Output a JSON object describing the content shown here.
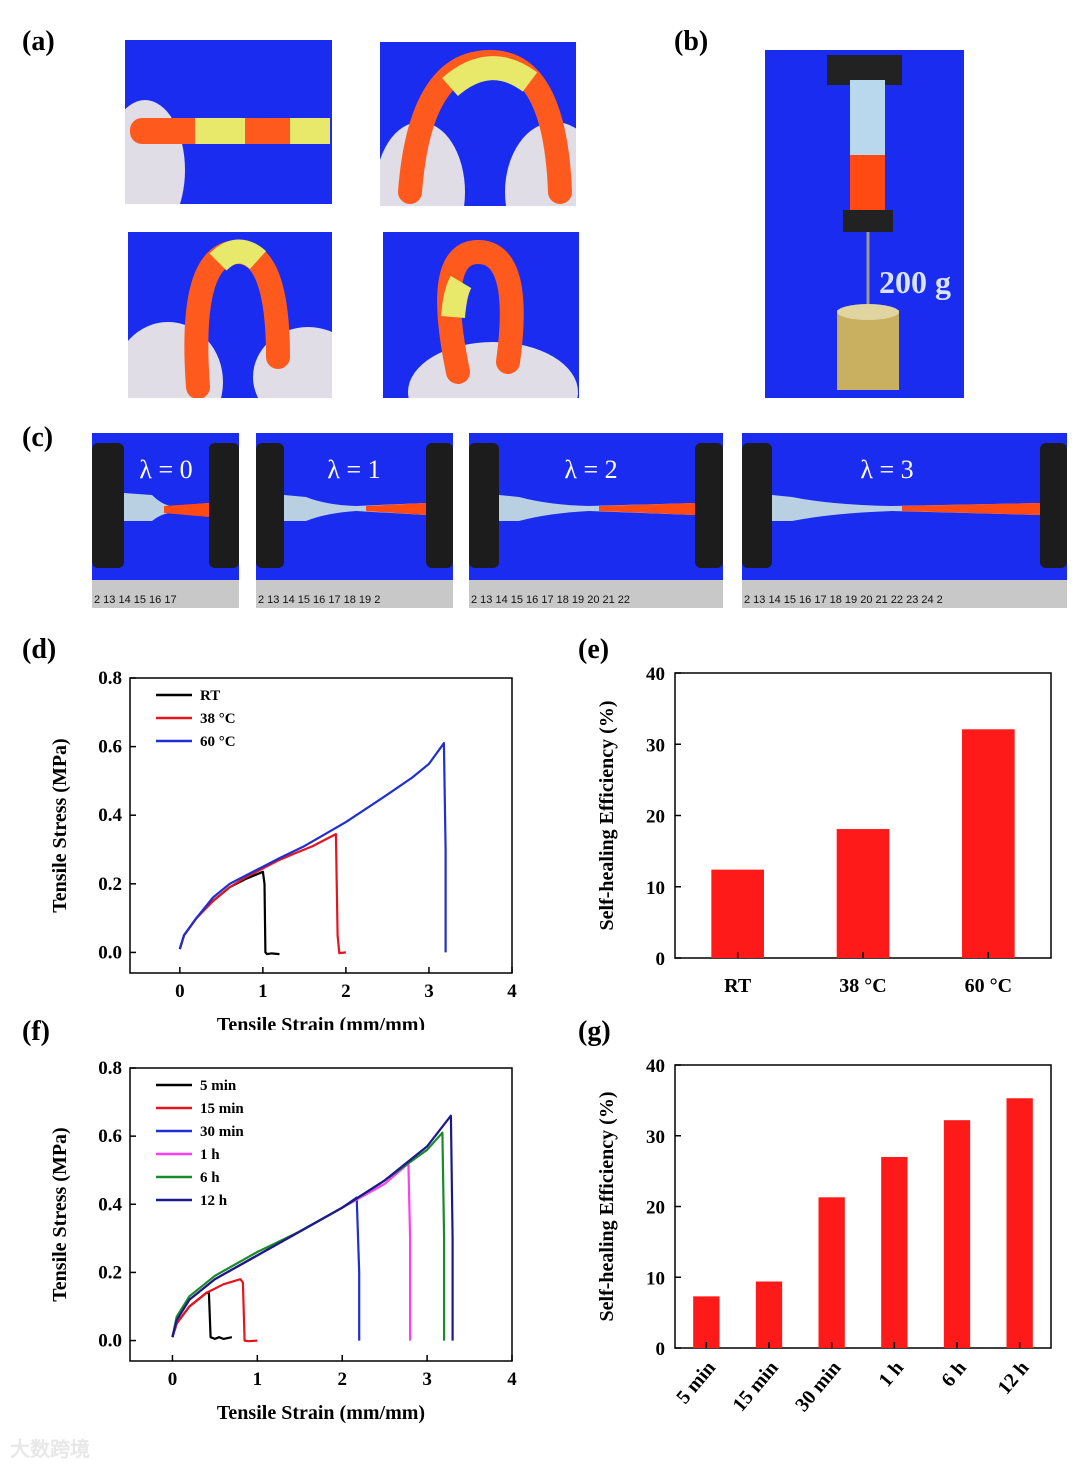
{
  "labels": {
    "a": "(a)",
    "b": "(b)",
    "c": "(c)",
    "d": "(d)",
    "e": "(e)",
    "f": "(f)",
    "g": "(g)"
  },
  "panel_b": {
    "weight_label": "200 g"
  },
  "panel_c": {
    "stretch_labels": [
      "λ = 0",
      "λ = 1",
      "λ = 2",
      "λ = 3"
    ],
    "ruler_1": "2 13 14 15 16 17",
    "ruler_2": "2 13 14 15 16 17 18 19 2",
    "ruler_3": "2 13 14 15 16 17 18 19 20 21 22",
    "ruler_4": "2 13 14 15 16 17 18 19 20 21 22 23 24 2"
  },
  "watermark": "大数跨境",
  "colors": {
    "blue": "#1a2cf0",
    "red": "#ff1a1a",
    "black": "#000000",
    "red_line": "#e8141c",
    "blue_line": "#1f2fd0",
    "magenta": "#ff3df0",
    "green": "#1a8a2a",
    "navy": "#1a1a8a"
  },
  "chart_data": [
    {
      "id": "d",
      "type": "line",
      "xlabel": "Tensile Strain (mm/mm)",
      "ylabel": "Tensile Stress (MPa)",
      "xlim": [
        -0.6,
        4
      ],
      "ylim": [
        -0.06,
        0.8
      ],
      "xticks": [
        0,
        1,
        2,
        3,
        4
      ],
      "xtick_labels": [
        "0",
        "1",
        "2",
        "3",
        "4"
      ],
      "yticks": [
        0.0,
        0.2,
        0.4,
        0.6,
        0.8
      ],
      "ytick_labels": [
        "0.0",
        "0.2",
        "0.4",
        "0.6",
        "0.8"
      ],
      "legend": "top-left",
      "series": [
        {
          "name": "RT",
          "color": "#000000",
          "x": [
            0,
            0.05,
            0.2,
            0.4,
            0.6,
            0.8,
            1.0,
            1.02,
            1.03,
            1.05,
            1.1,
            1.2
          ],
          "y": [
            0.01,
            0.05,
            0.1,
            0.15,
            0.19,
            0.215,
            0.235,
            0.2,
            0.0,
            -0.005,
            -0.003,
            -0.005
          ]
        },
        {
          "name": "38 °C",
          "color": "#e8141c",
          "x": [
            0,
            0.05,
            0.2,
            0.4,
            0.6,
            0.8,
            1.0,
            1.2,
            1.4,
            1.6,
            1.8,
            1.88,
            1.9,
            1.92,
            2.0
          ],
          "y": [
            0.01,
            0.05,
            0.1,
            0.15,
            0.19,
            0.22,
            0.245,
            0.27,
            0.29,
            0.31,
            0.335,
            0.345,
            0.05,
            -0.002,
            0.0
          ]
        },
        {
          "name": "60 °C",
          "color": "#1f2fd0",
          "x": [
            0,
            0.05,
            0.2,
            0.4,
            0.6,
            0.8,
            1.0,
            1.2,
            1.5,
            2.0,
            2.5,
            2.8,
            3.0,
            3.18,
            3.2,
            3.2
          ],
          "y": [
            0.01,
            0.05,
            0.1,
            0.16,
            0.2,
            0.225,
            0.25,
            0.275,
            0.31,
            0.38,
            0.46,
            0.51,
            0.55,
            0.61,
            0.3,
            0.0
          ]
        }
      ]
    },
    {
      "id": "e",
      "type": "bar",
      "categories": [
        "RT",
        "38 °C",
        "60 °C"
      ],
      "values": [
        12.4,
        18.1,
        32.1
      ],
      "ylabel": "Self-healing Efficiency (%)",
      "ylim": [
        0,
        40
      ],
      "yticks": [
        0,
        10,
        20,
        30,
        40
      ],
      "ytick_labels": [
        "0",
        "10",
        "20",
        "30",
        "40"
      ]
    },
    {
      "id": "f",
      "type": "line",
      "xlabel": "Tensile Strain (mm/mm)",
      "ylabel": "Tensile Stress (MPa)",
      "xlim": [
        -0.5,
        4
      ],
      "ylim": [
        -0.06,
        0.8
      ],
      "xticks": [
        0,
        1,
        2,
        3,
        4
      ],
      "xtick_labels": [
        "0",
        "1",
        "2",
        "3",
        "4"
      ],
      "yticks": [
        0.0,
        0.2,
        0.4,
        0.6,
        0.8
      ],
      "ytick_labels": [
        "0.0",
        "0.2",
        "0.4",
        "0.6",
        "0.8"
      ],
      "legend": "top-left",
      "series": [
        {
          "name": "5 min",
          "color": "#000000",
          "x": [
            0,
            0.05,
            0.2,
            0.4,
            0.43,
            0.45,
            0.5,
            0.55,
            0.6,
            0.7
          ],
          "y": [
            0.01,
            0.05,
            0.1,
            0.14,
            0.14,
            0.01,
            0.005,
            0.01,
            0.005,
            0.01
          ]
        },
        {
          "name": "15 min",
          "color": "#e8141c",
          "x": [
            0,
            0.05,
            0.2,
            0.4,
            0.6,
            0.8,
            0.83,
            0.85,
            0.9,
            1.0
          ],
          "y": [
            0.01,
            0.05,
            0.1,
            0.14,
            0.165,
            0.18,
            0.17,
            0.0,
            -0.002,
            0.0
          ]
        },
        {
          "name": "30 min",
          "color": "#1f2fd0",
          "x": [
            0,
            0.05,
            0.2,
            0.5,
            1.0,
            1.5,
            2.0,
            2.17,
            2.2,
            2.2
          ],
          "y": [
            0.01,
            0.06,
            0.12,
            0.18,
            0.25,
            0.32,
            0.39,
            0.42,
            0.2,
            0.0
          ]
        },
        {
          "name": "1 h",
          "color": "#ff3df0",
          "x": [
            0,
            0.05,
            0.2,
            0.5,
            1.0,
            1.5,
            2.0,
            2.5,
            2.78,
            2.8,
            2.8
          ],
          "y": [
            0.01,
            0.06,
            0.12,
            0.18,
            0.25,
            0.32,
            0.39,
            0.46,
            0.52,
            0.3,
            0.0
          ]
        },
        {
          "name": "6 h",
          "color": "#1a8a2a",
          "x": [
            0,
            0.05,
            0.2,
            0.5,
            1.0,
            1.5,
            2.0,
            2.5,
            3.0,
            3.18,
            3.2,
            3.2
          ],
          "y": [
            0.01,
            0.07,
            0.13,
            0.19,
            0.26,
            0.32,
            0.39,
            0.47,
            0.56,
            0.61,
            0.3,
            0.0
          ]
        },
        {
          "name": "12 h",
          "color": "#1a1a8a",
          "x": [
            0,
            0.05,
            0.2,
            0.5,
            1.0,
            1.5,
            2.0,
            2.5,
            3.0,
            3.28,
            3.3,
            3.3
          ],
          "y": [
            0.01,
            0.06,
            0.12,
            0.18,
            0.25,
            0.32,
            0.39,
            0.47,
            0.57,
            0.66,
            0.3,
            0.0
          ]
        }
      ]
    },
    {
      "id": "g",
      "type": "bar",
      "categories": [
        "5 min",
        "15 min",
        "30 min",
        "1 h",
        "6 h",
        "12 h"
      ],
      "values": [
        7.3,
        9.4,
        21.3,
        27.0,
        32.2,
        35.3
      ],
      "ylabel": "Self-healing Efficiency (%)",
      "ylim": [
        0,
        40
      ],
      "yticks": [
        0,
        10,
        20,
        30,
        40
      ],
      "ytick_labels": [
        "0",
        "10",
        "20",
        "30",
        "40"
      ]
    }
  ]
}
